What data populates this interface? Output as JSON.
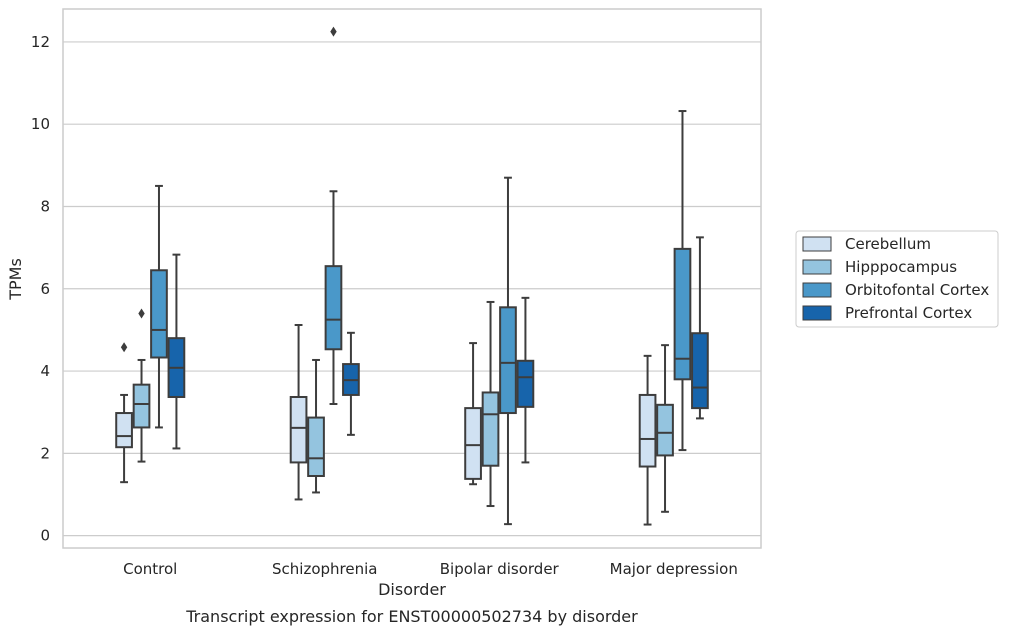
{
  "chart_data": {
    "type": "box",
    "title": "Transcript expression for ENST00000502734 by disorder",
    "xlabel": "Disorder",
    "ylabel": "TPMs",
    "ylim": [
      -0.3,
      12.8
    ],
    "yticks": [
      0,
      2,
      4,
      6,
      8,
      10,
      12
    ],
    "grid": true,
    "legend_position": "right",
    "categories": [
      "Control",
      "Schizophrenia",
      "Bipolar disorder",
      "Major depression"
    ],
    "series": [
      {
        "name": "Cerebellum",
        "color": "#d0e1f2",
        "boxes": [
          {
            "whislo": 1.3,
            "q1": 2.15,
            "median": 2.42,
            "q3": 2.98,
            "whishi": 3.42,
            "fliers": [
              4.58
            ]
          },
          {
            "whislo": 0.88,
            "q1": 1.78,
            "median": 2.62,
            "q3": 3.37,
            "whishi": 5.12,
            "fliers": []
          },
          {
            "whislo": 1.25,
            "q1": 1.38,
            "median": 2.2,
            "q3": 3.1,
            "whishi": 4.68,
            "fliers": []
          },
          {
            "whislo": 0.27,
            "q1": 1.68,
            "median": 2.35,
            "q3": 3.42,
            "whishi": 4.37,
            "fliers": []
          }
        ]
      },
      {
        "name": "Hipppocampus",
        "color": "#94c4df",
        "boxes": [
          {
            "whislo": 1.8,
            "q1": 2.63,
            "median": 3.2,
            "q3": 3.67,
            "whishi": 4.27,
            "fliers": [
              5.4
            ]
          },
          {
            "whislo": 1.05,
            "q1": 1.45,
            "median": 1.88,
            "q3": 2.87,
            "whishi": 4.27,
            "fliers": []
          },
          {
            "whislo": 0.72,
            "q1": 1.7,
            "median": 2.95,
            "q3": 3.48,
            "whishi": 5.68,
            "fliers": []
          },
          {
            "whislo": 0.58,
            "q1": 1.95,
            "median": 2.5,
            "q3": 3.18,
            "whishi": 4.63,
            "fliers": []
          }
        ]
      },
      {
        "name": "Orbitofontal Cortex",
        "color": "#4a98c9",
        "boxes": [
          {
            "whislo": 2.63,
            "q1": 4.33,
            "median": 5.0,
            "q3": 6.45,
            "whishi": 8.5,
            "fliers": []
          },
          {
            "whislo": 3.2,
            "q1": 4.53,
            "median": 5.25,
            "q3": 6.55,
            "whishi": 8.37,
            "fliers": [
              12.25
            ]
          },
          {
            "whislo": 0.28,
            "q1": 2.98,
            "median": 4.2,
            "q3": 5.55,
            "whishi": 8.7,
            "fliers": []
          },
          {
            "whislo": 2.08,
            "q1": 3.8,
            "median": 4.3,
            "q3": 6.97,
            "whishi": 10.32,
            "fliers": []
          }
        ]
      },
      {
        "name": "Prefrontal Cortex",
        "color": "#1764ab",
        "boxes": [
          {
            "whislo": 2.12,
            "q1": 3.37,
            "median": 4.08,
            "q3": 4.8,
            "whishi": 6.83,
            "fliers": []
          },
          {
            "whislo": 2.45,
            "q1": 3.42,
            "median": 3.78,
            "q3": 4.17,
            "whishi": 4.93,
            "fliers": []
          },
          {
            "whislo": 1.78,
            "q1": 3.13,
            "median": 3.85,
            "q3": 4.25,
            "whishi": 5.78,
            "fliers": []
          },
          {
            "whislo": 2.85,
            "q1": 3.1,
            "median": 3.6,
            "q3": 4.92,
            "whishi": 7.25,
            "fliers": []
          }
        ]
      }
    ]
  }
}
